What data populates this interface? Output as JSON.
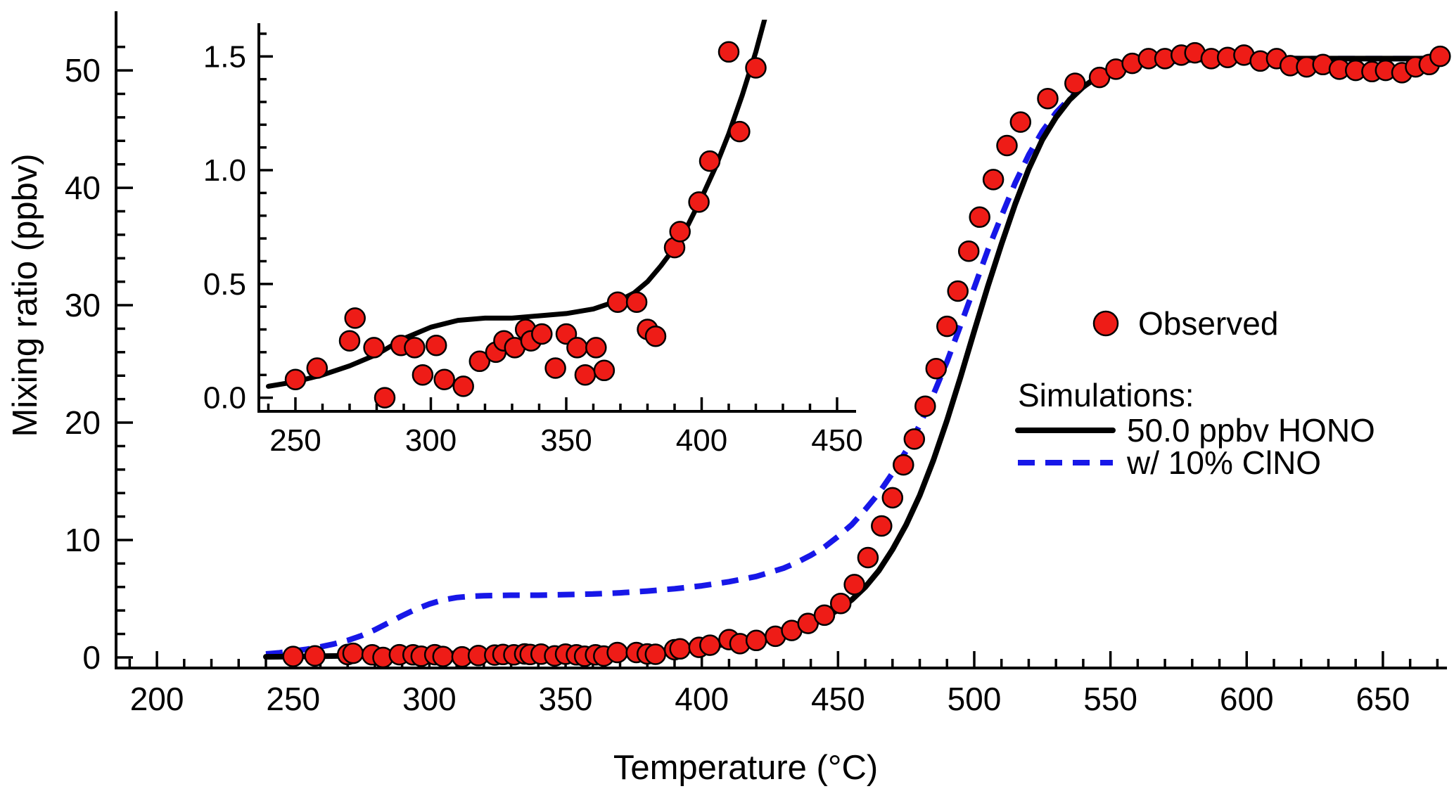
{
  "colors": {
    "background": "#ffffff",
    "axis": "#000000",
    "observed_fill": "#ee1c17",
    "observed_stroke": "#000000",
    "hono_line": "#000000",
    "clno_line": "#1717e8"
  },
  "chart_data": {
    "type": "scatter",
    "title": "",
    "xlabel": "Temperature (°C)",
    "ylabel": "Mixing ratio (ppbv)",
    "legend": {
      "observed": "Observed",
      "simulations": "Simulations:",
      "hono": "50.0 ppbv HONO",
      "clno": "w/ 10% ClNO"
    },
    "main": {
      "xlim": [
        185,
        673
      ],
      "ylim": [
        -0.9,
        53.6
      ],
      "xticks": {
        "major": [
          200,
          250,
          300,
          350,
          400,
          450,
          500,
          550,
          600,
          650
        ],
        "labels": [
          "200",
          "250",
          "300",
          "350",
          "400",
          "450",
          "500",
          "550",
          "600",
          "650"
        ],
        "minor_step": 10
      },
      "yticks": {
        "major": [
          0,
          10,
          20,
          30,
          40,
          50
        ],
        "labels": [
          "0",
          "10",
          "20",
          "30",
          "40",
          "50"
        ],
        "minor_step": 2
      }
    },
    "inset": {
      "xlim": [
        236.5,
        456.5
      ],
      "ylim": [
        -0.06,
        1.64
      ],
      "xticks": {
        "major": [
          250,
          300,
          350,
          400,
          450
        ],
        "labels": [
          "250",
          "300",
          "350",
          "400",
          "450"
        ],
        "minor_step": 10
      },
      "yticks": {
        "major": [
          0,
          0.5,
          1,
          1.5
        ],
        "labels": [
          "0.0",
          "0.5",
          "1.0",
          "1.5"
        ],
        "minor_step": 0.1
      }
    },
    "series": {
      "observed": {
        "points": [
          [
            250,
            0.08
          ],
          [
            258,
            0.13
          ],
          [
            270,
            0.25
          ],
          [
            272,
            0.35
          ],
          [
            279,
            0.22
          ],
          [
            283,
            0.0
          ],
          [
            289,
            0.23
          ],
          [
            294,
            0.22
          ],
          [
            297,
            0.1
          ],
          [
            302,
            0.23
          ],
          [
            305,
            0.08
          ],
          [
            312,
            0.05
          ],
          [
            318,
            0.16
          ],
          [
            324,
            0.2
          ],
          [
            327,
            0.25
          ],
          [
            331,
            0.22
          ],
          [
            335,
            0.3
          ],
          [
            337,
            0.25
          ],
          [
            341,
            0.28
          ],
          [
            346,
            0.13
          ],
          [
            350,
            0.28
          ],
          [
            354,
            0.22
          ],
          [
            357,
            0.1
          ],
          [
            361,
            0.22
          ],
          [
            364,
            0.12
          ],
          [
            369,
            0.42
          ],
          [
            376,
            0.42
          ],
          [
            380,
            0.3
          ],
          [
            383,
            0.27
          ],
          [
            390,
            0.66
          ],
          [
            392,
            0.73
          ],
          [
            399,
            0.86
          ],
          [
            403,
            1.04
          ],
          [
            410,
            1.52
          ],
          [
            414,
            1.17
          ],
          [
            420,
            1.45
          ],
          [
            427,
            1.8
          ],
          [
            433,
            2.3
          ],
          [
            439,
            2.9
          ],
          [
            445,
            3.6
          ],
          [
            451,
            4.6
          ],
          [
            456,
            6.2
          ],
          [
            461,
            8.5
          ],
          [
            466,
            11.2
          ],
          [
            470,
            13.6
          ],
          [
            474,
            16.4
          ],
          [
            478,
            18.6
          ],
          [
            482,
            21.4
          ],
          [
            486,
            24.6
          ],
          [
            490,
            28.2
          ],
          [
            494,
            31.2
          ],
          [
            498,
            34.6
          ],
          [
            502,
            37.5
          ],
          [
            507,
            40.7
          ],
          [
            512,
            43.6
          ],
          [
            517,
            45.6
          ],
          [
            527,
            47.6
          ],
          [
            537,
            48.9
          ],
          [
            546,
            49.4
          ],
          [
            552,
            50.1
          ],
          [
            558,
            50.6
          ],
          [
            564,
            51.0
          ],
          [
            570,
            51.0
          ],
          [
            576,
            51.3
          ],
          [
            581,
            51.5
          ],
          [
            587,
            51.0
          ],
          [
            593,
            51.1
          ],
          [
            599,
            51.3
          ],
          [
            605,
            50.8
          ],
          [
            611,
            51.0
          ],
          [
            616,
            50.4
          ],
          [
            622,
            50.3
          ],
          [
            628,
            50.5
          ],
          [
            634,
            50.1
          ],
          [
            640,
            50.0
          ],
          [
            646,
            49.9
          ],
          [
            651,
            50.0
          ],
          [
            657,
            49.8
          ],
          [
            662,
            50.3
          ],
          [
            667,
            50.5
          ],
          [
            671,
            51.2
          ]
        ]
      },
      "hono": {
        "points": [
          [
            240,
            0.05
          ],
          [
            250,
            0.07
          ],
          [
            260,
            0.1
          ],
          [
            270,
            0.14
          ],
          [
            280,
            0.19
          ],
          [
            290,
            0.26
          ],
          [
            300,
            0.31
          ],
          [
            310,
            0.34
          ],
          [
            320,
            0.35
          ],
          [
            330,
            0.35
          ],
          [
            340,
            0.36
          ],
          [
            350,
            0.37
          ],
          [
            360,
            0.39
          ],
          [
            370,
            0.43
          ],
          [
            375,
            0.46
          ],
          [
            380,
            0.51
          ],
          [
            385,
            0.58
          ],
          [
            390,
            0.66
          ],
          [
            395,
            0.76
          ],
          [
            400,
            0.88
          ],
          [
            405,
            1.01
          ],
          [
            410,
            1.16
          ],
          [
            415,
            1.33
          ],
          [
            420,
            1.52
          ],
          [
            425,
            1.74
          ],
          [
            430,
            2.0
          ],
          [
            435,
            2.35
          ],
          [
            440,
            2.8
          ],
          [
            445,
            3.35
          ],
          [
            450,
            4.05
          ],
          [
            455,
            4.9
          ],
          [
            460,
            6.0
          ],
          [
            465,
            7.4
          ],
          [
            470,
            9.2
          ],
          [
            475,
            11.3
          ],
          [
            480,
            13.8
          ],
          [
            485,
            16.8
          ],
          [
            490,
            20.2
          ],
          [
            495,
            23.9
          ],
          [
            500,
            27.8
          ],
          [
            505,
            31.6
          ],
          [
            510,
            35.2
          ],
          [
            515,
            38.6
          ],
          [
            520,
            41.6
          ],
          [
            525,
            44.1
          ],
          [
            530,
            46.0
          ],
          [
            535,
            47.5
          ],
          [
            540,
            48.6
          ],
          [
            545,
            49.4
          ],
          [
            550,
            49.9
          ],
          [
            555,
            50.3
          ],
          [
            560,
            50.5
          ],
          [
            565,
            50.7
          ],
          [
            570,
            50.8
          ],
          [
            580,
            50.9
          ],
          [
            590,
            51.0
          ],
          [
            600,
            51.0
          ],
          [
            620,
            51.0
          ],
          [
            640,
            51.0
          ],
          [
            660,
            51.0
          ],
          [
            673,
            51.0
          ]
        ]
      },
      "clno": {
        "dashed": true,
        "points": [
          [
            240,
            0.3
          ],
          [
            245,
            0.4
          ],
          [
            250,
            0.55
          ],
          [
            255,
            0.7
          ],
          [
            260,
            0.9
          ],
          [
            265,
            1.15
          ],
          [
            270,
            1.45
          ],
          [
            275,
            1.85
          ],
          [
            280,
            2.35
          ],
          [
            285,
            2.95
          ],
          [
            290,
            3.55
          ],
          [
            295,
            4.1
          ],
          [
            300,
            4.55
          ],
          [
            305,
            4.9
          ],
          [
            310,
            5.1
          ],
          [
            315,
            5.2
          ],
          [
            320,
            5.25
          ],
          [
            330,
            5.3
          ],
          [
            340,
            5.3
          ],
          [
            350,
            5.35
          ],
          [
            360,
            5.4
          ],
          [
            370,
            5.5
          ],
          [
            380,
            5.65
          ],
          [
            390,
            5.85
          ],
          [
            400,
            6.1
          ],
          [
            410,
            6.45
          ],
          [
            420,
            6.9
          ],
          [
            430,
            7.6
          ],
          [
            435,
            8.1
          ],
          [
            440,
            8.7
          ],
          [
            445,
            9.4
          ],
          [
            450,
            10.3
          ],
          [
            455,
            11.3
          ],
          [
            460,
            12.6
          ],
          [
            465,
            14.0
          ],
          [
            470,
            15.7
          ],
          [
            475,
            17.6
          ],
          [
            480,
            19.8
          ],
          [
            485,
            22.4
          ],
          [
            490,
            25.2
          ],
          [
            495,
            28.3
          ],
          [
            500,
            31.5
          ],
          [
            505,
            34.7
          ],
          [
            510,
            37.6
          ],
          [
            515,
            40.4
          ],
          [
            520,
            42.8
          ],
          [
            525,
            44.8
          ],
          [
            530,
            46.4
          ],
          [
            535,
            47.6
          ],
          [
            540,
            48.6
          ],
          [
            545,
            49.3
          ],
          [
            550,
            49.8
          ],
          [
            555,
            50.1
          ],
          [
            560,
            50.4
          ],
          [
            565,
            50.6
          ],
          [
            570,
            50.7
          ],
          [
            580,
            50.9
          ],
          [
            600,
            51.0
          ],
          [
            620,
            51.0
          ],
          [
            640,
            51.0
          ],
          [
            660,
            51.0
          ],
          [
            673,
            51.0
          ]
        ]
      }
    }
  }
}
